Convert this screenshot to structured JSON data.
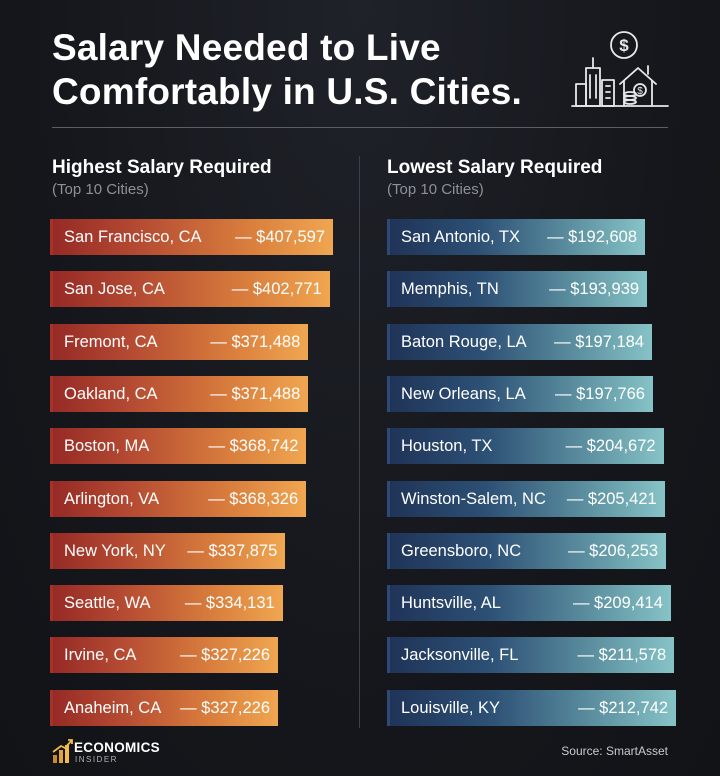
{
  "title_line1": "Salary Needed to Live",
  "title_line2": "Comfortably in U.S. Cities.",
  "left": {
    "heading": "Highest Salary Required",
    "subheading": "(Top 10 Cities)"
  },
  "right": {
    "heading": "Lowest Salary Required",
    "subheading": "(Top 10 Cities)"
  },
  "colors": {
    "highest_start": "#962a26",
    "highest_end": "#f0a650",
    "lowest_start": "#1f3458",
    "lowest_end": "#86c3c6"
  },
  "chart_data": [
    {
      "type": "bar",
      "orientation": "horizontal",
      "title": "Highest Salary Required",
      "subtitle": "(Top 10 Cities)",
      "categories": [
        "San Francisco, CA",
        "San Jose, CA",
        "Fremont, CA",
        "Oakland, CA",
        "Boston, MA",
        "Arlington, VA",
        "New York, NY",
        "Seattle, WA",
        "Irvine, CA",
        "Anaheim, CA"
      ],
      "values": [
        407597,
        402771,
        371488,
        371488,
        368742,
        368326,
        337875,
        334131,
        327226,
        327226
      ],
      "labels": [
        "— $407,597",
        "— $402,771",
        "— $371,488",
        "— $371,488",
        "— $368,742",
        "— $368,326",
        "— $337,875",
        "— $334,131",
        "— $327,226",
        "— $327,226"
      ]
    },
    {
      "type": "bar",
      "orientation": "horizontal",
      "title": "Lowest Salary Required",
      "subtitle": "(Top 10 Cities)",
      "categories": [
        "San Antonio, TX",
        "Memphis, TN",
        "Baton Rouge, LA",
        "New Orleans, LA",
        "Houston, TX",
        "Winston-Salem, NC",
        "Greensboro, NC",
        "Huntsville, AL",
        "Jacksonville, FL",
        "Louisville, KY"
      ],
      "values": [
        192608,
        193939,
        197184,
        197766,
        204672,
        205421,
        206253,
        209414,
        211578,
        212742
      ],
      "labels": [
        "— $192,608",
        "— $193,939",
        "— $197,184",
        "— $197,766",
        "— $204,672",
        "— $205,421",
        "— $206,253",
        "— $209,414",
        "— $211,578",
        "— $212,742"
      ]
    }
  ],
  "footer": {
    "logo_name": "ECONOMICS",
    "logo_sub": "INSIDER",
    "source": "Source: SmartAsset"
  },
  "icons": {
    "hero": "city-skyline-dollar-icon",
    "logo": "bar-chart-logo-icon"
  }
}
